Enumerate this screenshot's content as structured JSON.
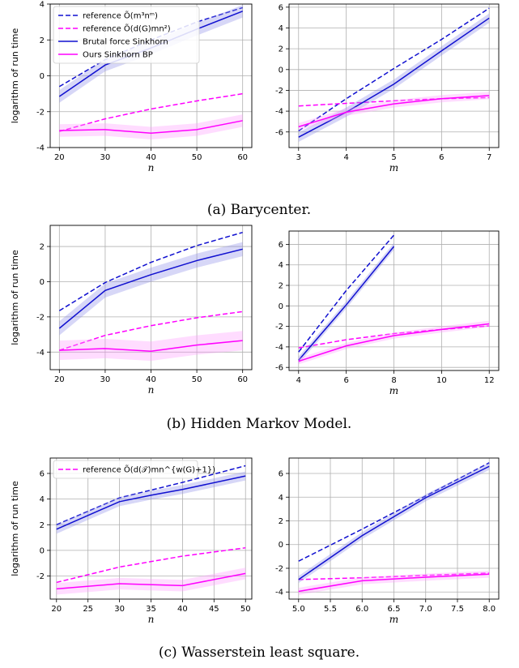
{
  "colors": {
    "blue": "#1010d0",
    "magenta": "#ff00ff",
    "blue_band": "#8c8ce8",
    "magenta_band": "#ff9cff",
    "grid": "#b0b0b0"
  },
  "chart_data": [
    {
      "type": "line",
      "id": "a-left",
      "xlabel": "n",
      "ylabel": "logarithm of run time",
      "xlim": [
        18,
        62
      ],
      "ylim": [
        -4,
        4
      ],
      "xticks": [
        20,
        30,
        40,
        50,
        60
      ],
      "yticks": [
        -4,
        -2,
        0,
        2,
        4
      ],
      "grid": true,
      "legend": "top-left",
      "series": [
        {
          "name": "reference Õ(m³nᵐ)",
          "style": "dashed",
          "color": "blue",
          "x": [
            20,
            30,
            40,
            50,
            60
          ],
          "y": [
            -0.6,
            0.9,
            2.0,
            3.0,
            3.8
          ]
        },
        {
          "name": "reference Õ(d(G)mn²)",
          "style": "dashed",
          "color": "magenta",
          "x": [
            20,
            30,
            40,
            50,
            60
          ],
          "y": [
            -3.1,
            -2.4,
            -1.85,
            -1.4,
            -1.0
          ]
        },
        {
          "name": "Brutal force Sinkhorn",
          "style": "solid",
          "color": "blue",
          "band": 0.35,
          "x": [
            20,
            30,
            40,
            50,
            60
          ],
          "y": [
            -1.15,
            0.6,
            1.55,
            2.6,
            3.6
          ]
        },
        {
          "name": "Ours Sinkhorn BP",
          "style": "solid",
          "color": "magenta",
          "band": 0.35,
          "x": [
            20,
            30,
            40,
            50,
            60
          ],
          "y": [
            -3.05,
            -3.0,
            -3.2,
            -3.0,
            -2.5
          ]
        }
      ]
    },
    {
      "type": "line",
      "id": "a-right",
      "xlabel": "m",
      "ylabel": "",
      "xlim": [
        2.8,
        7.2
      ],
      "ylim": [
        -7.5,
        6.3
      ],
      "xticks": [
        3,
        4,
        5,
        6,
        7
      ],
      "yticks": [
        -6,
        -4,
        -2,
        0,
        2,
        4,
        6
      ],
      "grid": true,
      "series": [
        {
          "style": "dashed",
          "color": "blue",
          "x": [
            3,
            4,
            5,
            6,
            7
          ],
          "y": [
            -5.9,
            -2.8,
            0.1,
            2.9,
            5.9
          ]
        },
        {
          "style": "dashed",
          "color": "magenta",
          "x": [
            3,
            4,
            5,
            6,
            7
          ],
          "y": [
            -3.5,
            -3.25,
            -3.0,
            -2.8,
            -2.7
          ]
        },
        {
          "style": "solid",
          "color": "blue",
          "band": 0.45,
          "x": [
            3,
            4,
            5,
            6,
            7
          ],
          "y": [
            -6.5,
            -4.1,
            -1.4,
            1.8,
            4.95
          ]
        },
        {
          "style": "solid",
          "color": "magenta",
          "band": 0.35,
          "x": [
            3,
            4,
            5,
            6,
            7
          ],
          "y": [
            -5.5,
            -4.1,
            -3.3,
            -2.8,
            -2.5
          ]
        }
      ]
    },
    {
      "type": "line",
      "id": "b-left",
      "xlabel": "n",
      "ylabel": "logarithm of run time",
      "xlim": [
        18,
        62
      ],
      "ylim": [
        -5.0,
        3.2
      ],
      "xticks": [
        20,
        30,
        40,
        50,
        60
      ],
      "yticks": [
        -4,
        -2,
        0,
        2
      ],
      "grid": true,
      "series": [
        {
          "style": "dashed",
          "color": "blue",
          "x": [
            20,
            30,
            40,
            50,
            60
          ],
          "y": [
            -1.65,
            -0.05,
            1.1,
            2.05,
            2.8
          ]
        },
        {
          "style": "dashed",
          "color": "magenta",
          "x": [
            20,
            30,
            40,
            50,
            60
          ],
          "y": [
            -3.9,
            -3.05,
            -2.5,
            -2.05,
            -1.7
          ]
        },
        {
          "style": "solid",
          "color": "blue",
          "band": 0.4,
          "x": [
            20,
            30,
            40,
            50,
            60
          ],
          "y": [
            -2.65,
            -0.5,
            0.4,
            1.2,
            1.85
          ]
        },
        {
          "style": "solid",
          "color": "magenta",
          "band": 0.55,
          "x": [
            20,
            30,
            40,
            50,
            60
          ],
          "y": [
            -3.9,
            -3.8,
            -3.95,
            -3.6,
            -3.35
          ]
        }
      ]
    },
    {
      "type": "line",
      "id": "b-right",
      "xlabel": "m",
      "ylabel": "",
      "xlim": [
        3.6,
        12.4
      ],
      "ylim": [
        -6.3,
        7.3
      ],
      "xticks": [
        4,
        6,
        8,
        10,
        12
      ],
      "yticks": [
        -6,
        -4,
        -2,
        0,
        2,
        4,
        6
      ],
      "grid": true,
      "series": [
        {
          "style": "dashed",
          "color": "blue",
          "x": [
            4,
            6,
            8
          ],
          "y": [
            -4.5,
            1.5,
            6.9
          ]
        },
        {
          "style": "dashed",
          "color": "magenta",
          "x": [
            4,
            6,
            8,
            10,
            12
          ],
          "y": [
            -4.1,
            -3.3,
            -2.7,
            -2.3,
            -1.95
          ]
        },
        {
          "style": "solid",
          "color": "blue",
          "band": 0.35,
          "x": [
            4,
            6,
            8
          ],
          "y": [
            -5.3,
            0.1,
            5.8
          ]
        },
        {
          "style": "solid",
          "color": "magenta",
          "band": 0.3,
          "x": [
            4,
            6,
            8,
            10,
            12
          ],
          "y": [
            -5.4,
            -3.9,
            -2.9,
            -2.3,
            -1.75
          ]
        }
      ]
    },
    {
      "type": "line",
      "id": "c-left",
      "xlabel": "n",
      "ylabel": "logarithm of run time",
      "xlim": [
        19,
        51
      ],
      "ylim": [
        -3.8,
        7.2
      ],
      "xticks": [
        20,
        25,
        30,
        35,
        40,
        45,
        50
      ],
      "yticks": [
        -2,
        0,
        2,
        4,
        6
      ],
      "grid": true,
      "legend": "top-left",
      "series": [
        {
          "name": "reference Õ(d(𝒯)mn^{w(G)+1})",
          "style": "dashed",
          "color": "magenta",
          "x": [
            20,
            30,
            40,
            50
          ],
          "y": [
            -2.5,
            -1.3,
            -0.45,
            0.2
          ]
        },
        {
          "style": "dashed",
          "color": "blue",
          "x": [
            20,
            30,
            40,
            50
          ],
          "y": [
            2.0,
            4.1,
            5.3,
            6.6
          ]
        },
        {
          "style": "solid",
          "color": "blue",
          "band": 0.35,
          "x": [
            20,
            30,
            35,
            40,
            50
          ],
          "y": [
            1.65,
            3.8,
            4.3,
            4.75,
            5.8
          ]
        },
        {
          "style": "solid",
          "color": "magenta",
          "band": 0.45,
          "x": [
            20,
            30,
            40,
            50
          ],
          "y": [
            -3.0,
            -2.6,
            -2.75,
            -1.8
          ]
        }
      ]
    },
    {
      "type": "line",
      "id": "c-right",
      "xlabel": "m",
      "ylabel": "",
      "xlim": [
        4.85,
        8.15
      ],
      "ylim": [
        -4.6,
        7.3
      ],
      "xticks": [
        5.0,
        5.5,
        6.0,
        6.5,
        7.0,
        7.5,
        8.0
      ],
      "xtick_labels": [
        "5.0",
        "5.5",
        "6.0",
        "6.5",
        "7.0",
        "7.5",
        "8.0"
      ],
      "yticks": [
        -4,
        -2,
        0,
        2,
        4,
        6
      ],
      "grid": true,
      "series": [
        {
          "style": "dashed",
          "color": "blue",
          "x": [
            5,
            6,
            7,
            8
          ],
          "y": [
            -1.4,
            1.3,
            4.1,
            6.9
          ]
        },
        {
          "style": "dashed",
          "color": "magenta",
          "x": [
            5,
            6,
            7,
            8
          ],
          "y": [
            -2.95,
            -2.8,
            -2.6,
            -2.4
          ]
        },
        {
          "style": "solid",
          "color": "blue",
          "band": 0.3,
          "x": [
            5,
            6,
            7,
            8
          ],
          "y": [
            -2.95,
            0.75,
            3.95,
            6.6
          ]
        },
        {
          "style": "solid",
          "color": "magenta",
          "band": 0.3,
          "x": [
            5,
            6,
            7,
            8
          ],
          "y": [
            -3.95,
            -3.05,
            -2.75,
            -2.5
          ]
        }
      ]
    }
  ],
  "legends": {
    "a": [
      "reference Õ(m³nᵐ)",
      "reference Õ(d(G)mn²)",
      "Brutal force Sinkhorn",
      "Ours Sinkhorn BP"
    ],
    "c": [
      "reference Õ(d(𝒯)mn^{w(G)+1})"
    ]
  },
  "captions": {
    "a": "(a) Barycenter.",
    "b": "(b) Hidden Markov Model.",
    "c": "(c) Wasserstein least square."
  }
}
